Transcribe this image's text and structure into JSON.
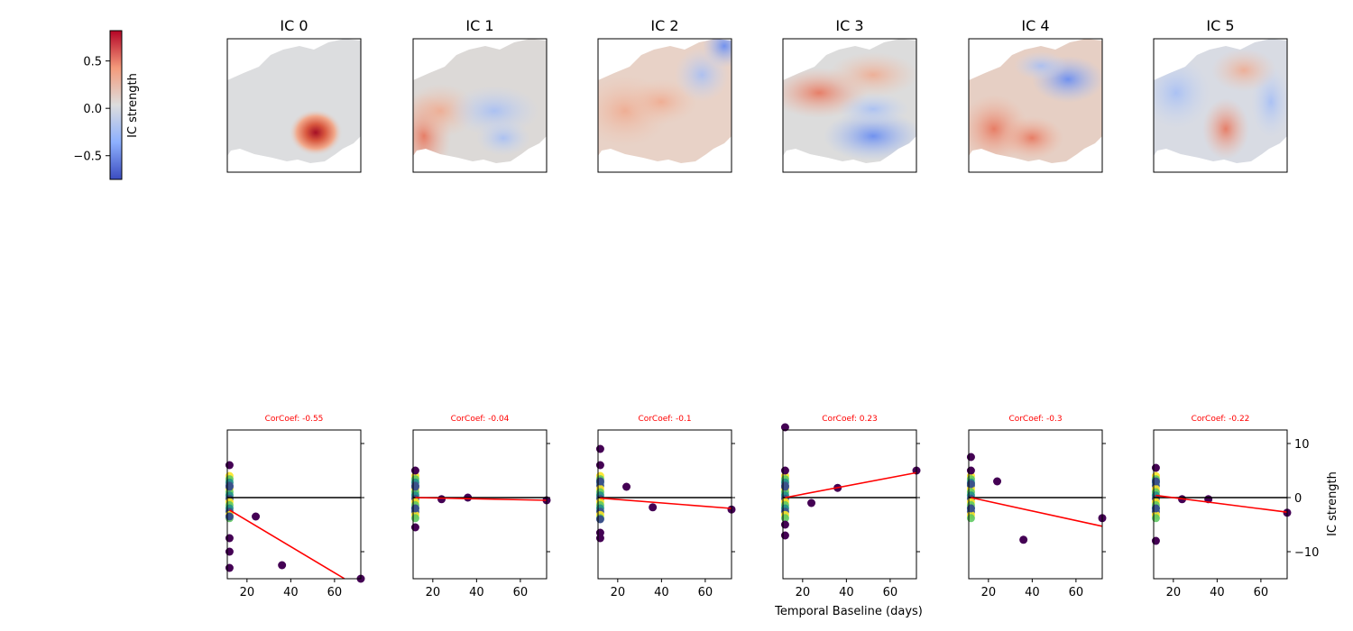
{
  "colorbar": {
    "label": "IC strength",
    "ticks": [
      0.5,
      0.0,
      -0.5
    ],
    "tick_labels": [
      "0.5",
      "0.0",
      "−0.5"
    ],
    "range": [
      -0.75,
      0.82
    ],
    "colormap": "coolwarm",
    "colors": {
      "low": "#3b4cc0",
      "mid": "#dddddd",
      "high": "#b40426"
    }
  },
  "map_panels": [
    {
      "title": "IC 0",
      "pattern": "strong positive hotspot in south-center, rest near zero"
    },
    {
      "title": "IC 1",
      "pattern": "positive west, mild negative center-east"
    },
    {
      "title": "IC 2",
      "pattern": "mild positive west, strong negative north-east corner"
    },
    {
      "title": "IC 3",
      "pattern": "positive north band, negative south-east"
    },
    {
      "title": "IC 4",
      "pattern": "positive west/south, negative north-east"
    },
    {
      "title": "IC 5",
      "pattern": "negative west/east, positive center-south"
    }
  ],
  "chart_data": {
    "type": "scatter",
    "xlabel": "Temporal Baseline (days)",
    "ylabel": "IC strength",
    "xlim": [
      11,
      72
    ],
    "ylim": [
      -15,
      12.5
    ],
    "xticks": [
      20,
      40,
      60
    ],
    "yticks": [
      10,
      0,
      -10
    ],
    "ytick_labels": [
      "10",
      "0",
      "−10"
    ],
    "reference_line_y": 0,
    "point_colors": {
      "far": "#440154",
      "mid": "#3b528b",
      "teal": "#21918c",
      "green": "#5ec962",
      "yellow": "#fde725"
    },
    "trend_color": "#ff0000",
    "panels": [
      {
        "corr_label": "CorCoef: -0.55",
        "points": [
          [
            12,
            6
          ],
          [
            12,
            2
          ],
          [
            12,
            -3.5
          ],
          [
            12,
            -7.5
          ],
          [
            12,
            -10
          ],
          [
            12,
            -13
          ],
          [
            24,
            -3.5
          ],
          [
            36,
            -12.5
          ],
          [
            72,
            -15
          ]
        ],
        "trend": [
          [
            12,
            -2.3
          ],
          [
            72,
            -16.8
          ]
        ]
      },
      {
        "corr_label": "CorCoef: -0.04",
        "points": [
          [
            12,
            5
          ],
          [
            12,
            2
          ],
          [
            12,
            -2
          ],
          [
            12,
            -5.5
          ],
          [
            24,
            -0.3
          ],
          [
            36,
            0
          ],
          [
            72,
            -0.5
          ]
        ],
        "trend": [
          [
            12,
            0
          ],
          [
            72,
            -0.5
          ]
        ]
      },
      {
        "corr_label": "CorCoef: -0.1",
        "points": [
          [
            12,
            9
          ],
          [
            12,
            6
          ],
          [
            12,
            3
          ],
          [
            12,
            -4
          ],
          [
            12,
            -6.5
          ],
          [
            12,
            -7.5
          ],
          [
            24,
            2
          ],
          [
            36,
            -1.8
          ],
          [
            72,
            -2.2
          ]
        ],
        "trend": [
          [
            12,
            -0.1
          ],
          [
            72,
            -2
          ]
        ]
      },
      {
        "corr_label": "CorCoef: 0.23",
        "points": [
          [
            12,
            13
          ],
          [
            12,
            5
          ],
          [
            12,
            2
          ],
          [
            12,
            -5
          ],
          [
            12,
            -7
          ],
          [
            24,
            -1
          ],
          [
            36,
            1.8
          ],
          [
            72,
            5
          ]
        ],
        "trend": [
          [
            12,
            0
          ],
          [
            72,
            4.6
          ]
        ]
      },
      {
        "corr_label": "CorCoef: -0.3",
        "points": [
          [
            12,
            7.5
          ],
          [
            12,
            5
          ],
          [
            12,
            2.5
          ],
          [
            12,
            -2
          ],
          [
            24,
            3
          ],
          [
            36,
            -7.8
          ],
          [
            72,
            -3.8
          ]
        ],
        "trend": [
          [
            12,
            0
          ],
          [
            72,
            -5.3
          ]
        ]
      },
      {
        "corr_label": "CorCoef: -0.22",
        "points": [
          [
            12,
            5.5
          ],
          [
            12,
            3
          ],
          [
            12,
            -2
          ],
          [
            12,
            -8
          ],
          [
            24,
            -0.3
          ],
          [
            36,
            -0.3
          ],
          [
            72,
            -2.8
          ]
        ],
        "trend": [
          [
            12,
            0.4
          ],
          [
            72,
            -2.7
          ]
        ]
      }
    ]
  }
}
